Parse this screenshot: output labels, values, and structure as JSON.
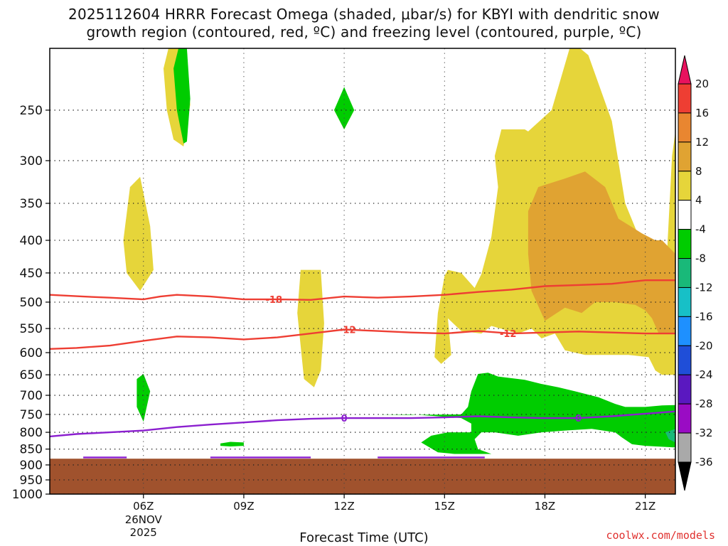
{
  "title_line1": "2025112604 HRRR Forecast Omega (shaded, μbar/s) for KBYI with dendritic snow",
  "title_line2": "growth region (contoured, red, ºC) and freezing level (contoured, purple, ºC)",
  "credit": "coolwx.com/models",
  "chart_data": {
    "type": "heatmap",
    "xlabel": "Forecast Time (UTC)",
    "ylabel": "",
    "y_scale": "log-pressure",
    "ylim": [
      1000,
      200
    ],
    "y_ticks": [
      250,
      300,
      350,
      400,
      450,
      500,
      550,
      600,
      650,
      700,
      750,
      800,
      850,
      900,
      950,
      1000
    ],
    "x_range_hours": [
      3.2,
      21.9
    ],
    "x_ticks": [
      {
        "hour": 6,
        "label": "06Z",
        "sub1": "26NOV",
        "sub2": "2025"
      },
      {
        "hour": 9,
        "label": "09Z",
        "sub1": "",
        "sub2": ""
      },
      {
        "hour": 12,
        "label": "12Z",
        "sub1": "",
        "sub2": ""
      },
      {
        "hour": 15,
        "label": "15Z",
        "sub1": "",
        "sub2": ""
      },
      {
        "hour": 18,
        "label": "18Z",
        "sub1": "",
        "sub2": ""
      },
      {
        "hour": 21,
        "label": "21Z",
        "sub1": "",
        "sub2": ""
      }
    ],
    "grid": true,
    "ground_level_hpa": 880,
    "ground_color": "#a0522d",
    "colorbar": {
      "labels": [
        "20",
        "16",
        "12",
        "8",
        "4",
        "-4",
        "-8",
        "-12",
        "-16",
        "-20",
        "-24",
        "-28",
        "-32",
        "-36"
      ],
      "colors": [
        "#e8125e",
        "#ee3e33",
        "#e98630",
        "#e0a332",
        "#e6d53a",
        "#ffffff",
        "#00cc00",
        "#19b979",
        "#17c0c7",
        "#1e90ff",
        "#1f4ed8",
        "#5a18c0",
        "#9a0cc4",
        "#a9a9a9",
        "#000000"
      ]
    },
    "shaded_regions": [
      {
        "class": "4 to 8",
        "color": "#e6d53a",
        "polygon": [
          [
            6.8,
            195
          ],
          [
            7.2,
            195
          ],
          [
            7.4,
            245
          ],
          [
            7.2,
            285
          ],
          [
            6.9,
            278
          ],
          [
            6.7,
            250
          ],
          [
            6.6,
            215
          ]
        ]
      },
      {
        "class": "4 to 8",
        "color": "#e6d53a",
        "polygon": [
          [
            5.6,
            330
          ],
          [
            5.9,
            318
          ],
          [
            6.2,
            380
          ],
          [
            6.3,
            445
          ],
          [
            5.9,
            480
          ],
          [
            5.5,
            450
          ],
          [
            5.4,
            400
          ]
        ]
      },
      {
        "class": "4 to 8",
        "color": "#e6d53a",
        "polygon": [
          [
            10.7,
            445
          ],
          [
            11.3,
            445
          ],
          [
            11.4,
            540
          ],
          [
            11.3,
            640
          ],
          [
            11.1,
            680
          ],
          [
            10.8,
            660
          ],
          [
            10.6,
            520
          ]
        ]
      },
      {
        "class": "4 to 8",
        "color": "#e6d53a",
        "polygon": [
          [
            12,
            233
          ],
          [
            12.3,
            250
          ],
          [
            12,
            268
          ],
          [
            11.7,
            250
          ]
        ]
      },
      {
        "class": "4 to 8",
        "color": "#e6d53a",
        "polygon": [
          [
            16.7,
            268
          ],
          [
            17.4,
            268
          ],
          [
            17.5,
            270
          ],
          [
            18.2,
            250
          ],
          [
            18.8,
            195
          ],
          [
            19.3,
            205
          ],
          [
            20.0,
            260
          ],
          [
            20.4,
            350
          ],
          [
            21.1,
            430
          ],
          [
            21.4,
            450
          ],
          [
            21.5,
            460
          ],
          [
            21.6,
            470
          ],
          [
            21.8,
            295
          ],
          [
            21.9,
            270
          ],
          [
            21.9,
            650
          ],
          [
            21.5,
            650
          ],
          [
            21.3,
            640
          ],
          [
            21.1,
            610
          ],
          [
            20.5,
            605
          ],
          [
            19.2,
            605
          ],
          [
            18.6,
            595
          ],
          [
            18.3,
            560
          ],
          [
            17.9,
            570
          ],
          [
            17.6,
            550
          ],
          [
            17.2,
            560
          ],
          [
            16.4,
            545
          ],
          [
            16.1,
            560
          ],
          [
            15.5,
            555
          ],
          [
            15.1,
            530
          ],
          [
            15.2,
            605
          ],
          [
            14.9,
            625
          ],
          [
            14.7,
            610
          ],
          [
            14.8,
            520
          ],
          [
            15.0,
            455
          ],
          [
            15.1,
            445
          ],
          [
            15.5,
            450
          ],
          [
            15.9,
            475
          ],
          [
            16.1,
            452
          ],
          [
            16.4,
            395
          ],
          [
            16.6,
            330
          ],
          [
            16.5,
            295
          ]
        ]
      },
      {
        "class": "8 to 12",
        "color": "#e0a332",
        "polygon": [
          [
            17.5,
            360
          ],
          [
            17.8,
            330
          ],
          [
            18.6,
            320
          ],
          [
            19.2,
            312
          ],
          [
            19.8,
            330
          ],
          [
            20.2,
            370
          ],
          [
            20.9,
            390
          ],
          [
            21.3,
            400
          ],
          [
            21.5,
            400
          ],
          [
            21.9,
            420
          ],
          [
            21.9,
            560
          ],
          [
            21.4,
            560
          ],
          [
            21.2,
            530
          ],
          [
            21.0,
            515
          ],
          [
            20.7,
            505
          ],
          [
            20.1,
            500
          ],
          [
            19.5,
            500
          ],
          [
            19.1,
            520
          ],
          [
            18.6,
            510
          ],
          [
            18.0,
            535
          ],
          [
            17.6,
            480
          ],
          [
            17.5,
            420
          ]
        ]
      },
      {
        "class": "-4 to -8",
        "color": "#00cc00",
        "polygon": [
          [
            7.1,
            195
          ],
          [
            7.3,
            200
          ],
          [
            7.4,
            240
          ],
          [
            7.3,
            280
          ],
          [
            7.2,
            282
          ],
          [
            7.0,
            250
          ],
          [
            6.9,
            215
          ]
        ]
      },
      {
        "class": "-4 to -8",
        "color": "#00cc00",
        "polygon": [
          [
            11.7,
            250
          ],
          [
            12.0,
            230
          ],
          [
            12.3,
            250
          ],
          [
            12.0,
            268
          ]
        ]
      },
      {
        "class": "-4 to -8",
        "color": "#00cc00",
        "polygon": [
          [
            5.8,
            660
          ],
          [
            6.0,
            648
          ],
          [
            6.2,
            690
          ],
          [
            6.0,
            770
          ],
          [
            5.8,
            730
          ]
        ]
      },
      {
        "class": "-4 to -8",
        "color": "#00cc00",
        "polygon": [
          [
            8.3,
            833
          ],
          [
            8.6,
            828
          ],
          [
            9.0,
            830
          ],
          [
            9.0,
            840
          ],
          [
            8.6,
            842
          ],
          [
            8.3,
            840
          ]
        ]
      },
      {
        "class": "-4 to -8",
        "color": "#00cc00",
        "polygon": [
          [
            13.0,
            752
          ],
          [
            14.0,
            750
          ],
          [
            14.8,
            755
          ],
          [
            15.5,
            760
          ],
          [
            15.8,
            775
          ],
          [
            15.8,
            800
          ],
          [
            15.1,
            800
          ],
          [
            14.6,
            810
          ],
          [
            14.3,
            830
          ],
          [
            14.8,
            860
          ],
          [
            15.3,
            865
          ],
          [
            16.4,
            865
          ],
          [
            16.0,
            850
          ],
          [
            15.9,
            820
          ],
          [
            16.1,
            800
          ],
          [
            16.5,
            800
          ],
          [
            17.2,
            810
          ],
          [
            17.9,
            800
          ],
          [
            18.6,
            795
          ],
          [
            19.4,
            790
          ],
          [
            20.1,
            800
          ],
          [
            20.3,
            815
          ],
          [
            20.6,
            835
          ],
          [
            21.0,
            840
          ],
          [
            21.9,
            845
          ],
          [
            21.9,
            725
          ],
          [
            21.5,
            726
          ],
          [
            21.0,
            730
          ],
          [
            20.4,
            730
          ],
          [
            20.1,
            722
          ],
          [
            19.6,
            705
          ],
          [
            18.9,
            690
          ],
          [
            18.4,
            680
          ],
          [
            17.9,
            672
          ],
          [
            17.4,
            662
          ],
          [
            16.6,
            654
          ],
          [
            16.3,
            645
          ],
          [
            16.0,
            648
          ],
          [
            15.8,
            690
          ],
          [
            15.7,
            730
          ],
          [
            15.5,
            750
          ]
        ]
      },
      {
        "class": "-8 to -12",
        "color": "#19b979",
        "polygon": [
          [
            21.6,
            800
          ],
          [
            21.9,
            790
          ],
          [
            21.9,
            830
          ],
          [
            21.7,
            820
          ]
        ]
      }
    ],
    "contours": [
      {
        "series": "dendritic growth -18",
        "value": -18,
        "color": "#ee3e33",
        "label_at": 9.9,
        "points": [
          [
            3.2,
            487
          ],
          [
            4.2,
            490
          ],
          [
            5.0,
            492
          ],
          [
            6.0,
            495
          ],
          [
            6.5,
            490
          ],
          [
            7.0,
            487
          ],
          [
            8.0,
            490
          ],
          [
            9.0,
            495
          ],
          [
            10.0,
            495
          ],
          [
            11.0,
            496
          ],
          [
            12.0,
            490
          ],
          [
            13.0,
            492
          ],
          [
            14.0,
            490
          ],
          [
            15.0,
            487
          ],
          [
            16.0,
            482
          ],
          [
            17.0,
            478
          ],
          [
            18.0,
            472
          ],
          [
            19.0,
            470
          ],
          [
            20.0,
            468
          ],
          [
            21.0,
            462
          ],
          [
            21.9,
            462
          ]
        ]
      },
      {
        "series": "dendritic growth -12",
        "value": -12,
        "color": "#ee3e33",
        "label_at": 12.1,
        "label_at2": 16.9,
        "points": [
          [
            3.2,
            592
          ],
          [
            4.0,
            590
          ],
          [
            5.0,
            585
          ],
          [
            6.0,
            575
          ],
          [
            7.0,
            566
          ],
          [
            8.0,
            568
          ],
          [
            9.0,
            572
          ],
          [
            10.0,
            568
          ],
          [
            11.0,
            560
          ],
          [
            12.0,
            552
          ],
          [
            13.0,
            555
          ],
          [
            14.0,
            558
          ],
          [
            15.0,
            560
          ],
          [
            16.0,
            555
          ],
          [
            17.0,
            560
          ],
          [
            18.0,
            558
          ],
          [
            19.0,
            556
          ],
          [
            20.0,
            558
          ],
          [
            21.0,
            560
          ],
          [
            21.9,
            560
          ]
        ]
      },
      {
        "series": "freezing level 0",
        "value": 0,
        "color": "#8b1fcf",
        "label_at": 12.0,
        "label_at2": 19.0,
        "points": [
          [
            3.2,
            812
          ],
          [
            4.0,
            805
          ],
          [
            5.0,
            800
          ],
          [
            6.0,
            795
          ],
          [
            7.0,
            785
          ],
          [
            8.0,
            778
          ],
          [
            9.0,
            772
          ],
          [
            10.0,
            766
          ],
          [
            11.0,
            762
          ],
          [
            12.0,
            760
          ],
          [
            13.0,
            760
          ],
          [
            14.0,
            760
          ],
          [
            15.0,
            758
          ],
          [
            16.0,
            755
          ],
          [
            17.0,
            758
          ],
          [
            18.0,
            760
          ],
          [
            19.0,
            760
          ],
          [
            20.0,
            755
          ],
          [
            21.0,
            748
          ],
          [
            21.9,
            742
          ]
        ]
      },
      {
        "series": "freezing level 0 (surface)",
        "value": 0,
        "color": "#8b1fcf",
        "points": [
          [
            4.2,
            876
          ],
          [
            5.5,
            876
          ]
        ]
      },
      {
        "series": "freezing level 0 (surface)",
        "value": 0,
        "color": "#8b1fcf",
        "points": [
          [
            8.0,
            876
          ],
          [
            11.0,
            876
          ]
        ]
      },
      {
        "series": "freezing level 0 (surface)",
        "value": 0,
        "color": "#8b1fcf",
        "points": [
          [
            13.0,
            876
          ],
          [
            16.2,
            876
          ]
        ]
      }
    ]
  }
}
